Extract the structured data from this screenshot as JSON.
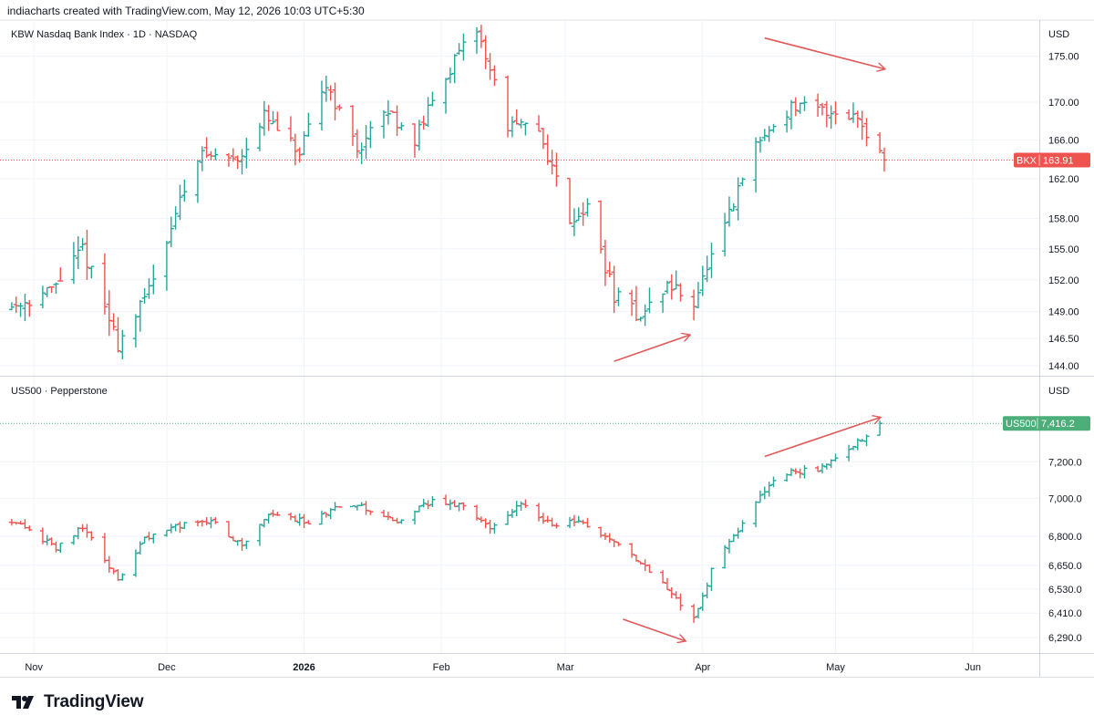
{
  "header": {
    "credit": "indiacharts created with TradingView.com, May 12, 2026 10:03 UTC+5:30"
  },
  "branding": {
    "logo_text": "TradingView"
  },
  "colors": {
    "up": "#26a69a",
    "down": "#ef5350",
    "arrow": "#e05a5a",
    "grid": "#f0f3fa",
    "axis_text": "#131722",
    "bkx_tag": "#ef5350",
    "us500_tag": "#4caf7a"
  },
  "chart_data": [
    {
      "type": "ohlc",
      "title": "KBW Nasdaq Bank Index · 1D · NASDAQ",
      "currency": "USD",
      "price_tag": {
        "symbol": "BKX",
        "value": "163.91"
      },
      "y_ticks": [
        "175.00",
        "170.00",
        "166.00",
        "162.00",
        "158.00",
        "155.00",
        "152.00",
        "149.00",
        "146.50",
        "144.00"
      ],
      "ylim": [
        143.5,
        178.5
      ],
      "log_scale": true,
      "annotations": [
        {
          "type": "arrow",
          "direction": "down",
          "from": [
            "2026-04-15",
            177.0
          ],
          "to": [
            "2026-05-12",
            173.6
          ]
        },
        {
          "type": "arrow",
          "direction": "up",
          "from": [
            "2026-03-12",
            144.4
          ],
          "to": [
            "2026-03-29",
            146.8
          ]
        }
      ],
      "anchors": [
        [
          "2025-10-27",
          149.5
        ],
        [
          "2025-11-05",
          151.0
        ],
        [
          "2025-11-12",
          155.0
        ],
        [
          "2025-11-20",
          146.0
        ],
        [
          "2025-11-26",
          150.0
        ],
        [
          "2025-12-03",
          158.5
        ],
        [
          "2025-12-08",
          164.5
        ],
        [
          "2025-12-17",
          164.0
        ],
        [
          "2025-12-23",
          168.5
        ],
        [
          "2025-12-31",
          164.5
        ],
        [
          "2026-01-06",
          172.0
        ],
        [
          "2026-01-13",
          165.0
        ],
        [
          "2026-01-20",
          169.0
        ],
        [
          "2026-01-26",
          166.0
        ],
        [
          "2026-02-02",
          173.0
        ],
        [
          "2026-02-09",
          178.0
        ],
        [
          "2026-02-16",
          167.5
        ],
        [
          "2026-02-23",
          167.0
        ],
        [
          "2026-03-02",
          158.0
        ],
        [
          "2026-03-06",
          159.0
        ],
        [
          "2026-03-12",
          150.5
        ],
        [
          "2026-03-18",
          148.5
        ],
        [
          "2026-03-24",
          151.5
        ],
        [
          "2026-03-30",
          150.0
        ],
        [
          "2026-04-06",
          157.0
        ],
        [
          "2026-04-13",
          165.5
        ],
        [
          "2026-04-21",
          169.5
        ],
        [
          "2026-04-30",
          169.0
        ],
        [
          "2026-05-06",
          168.5
        ],
        [
          "2026-05-12",
          163.91
        ]
      ]
    },
    {
      "type": "ohlc",
      "title": "US500 · Pepperstone",
      "currency": "USD",
      "price_tag": {
        "symbol": "US500",
        "value": "7,416.2"
      },
      "y_ticks": [
        "7,200.0",
        "7,000.0",
        "6,800.0",
        "6,650.0",
        "6,530.0",
        "6,410.0",
        "6,290.0"
      ],
      "ylim": [
        6260,
        7480
      ],
      "log_scale": true,
      "annotations": [
        {
          "type": "arrow",
          "direction": "up",
          "from": [
            "2026-04-15",
            7230
          ],
          "to": [
            "2026-05-11",
            7450
          ]
        },
        {
          "type": "arrow",
          "direction": "down",
          "from": [
            "2026-03-14",
            6380
          ],
          "to": [
            "2026-03-28",
            6275
          ]
        }
      ],
      "anchors": [
        [
          "2025-10-27",
          6880
        ],
        [
          "2025-11-06",
          6740
        ],
        [
          "2025-11-12",
          6850
        ],
        [
          "2025-11-20",
          6570
        ],
        [
          "2025-11-26",
          6780
        ],
        [
          "2025-12-03",
          6850
        ],
        [
          "2025-12-11",
          6880
        ],
        [
          "2025-12-18",
          6750
        ],
        [
          "2025-12-24",
          6920
        ],
        [
          "2026-01-02",
          6870
        ],
        [
          "2026-01-09",
          6960
        ],
        [
          "2026-01-15",
          6950
        ],
        [
          "2026-01-22",
          6870
        ],
        [
          "2026-01-30",
          6990
        ],
        [
          "2026-02-06",
          6960
        ],
        [
          "2026-02-12",
          6840
        ],
        [
          "2026-02-19",
          6980
        ],
        [
          "2026-02-26",
          6860
        ],
        [
          "2026-03-04",
          6890
        ],
        [
          "2026-03-10",
          6800
        ],
        [
          "2026-03-16",
          6700
        ],
        [
          "2026-03-23",
          6560
        ],
        [
          "2026-03-30",
          6380
        ],
        [
          "2026-04-03",
          6620
        ],
        [
          "2026-04-08",
          6800
        ],
        [
          "2026-04-14",
          7030
        ],
        [
          "2026-04-20",
          7140
        ],
        [
          "2026-04-27",
          7160
        ],
        [
          "2026-05-05",
          7290
        ],
        [
          "2026-05-11",
          7416.2
        ]
      ]
    }
  ],
  "x_axis": {
    "ticks": [
      {
        "label": "Nov",
        "date": "2025-11-01"
      },
      {
        "label": "Dec",
        "date": "2025-12-01"
      },
      {
        "label": "2026",
        "date": "2026-01-01"
      },
      {
        "label": "Feb",
        "date": "2026-02-01"
      },
      {
        "label": "Mar",
        "date": "2026-03-01"
      },
      {
        "label": "Apr",
        "date": "2026-04-01"
      },
      {
        "label": "May",
        "date": "2026-05-01"
      },
      {
        "label": "Jun",
        "date": "2026-06-01"
      }
    ],
    "xlim": [
      "2025-10-26",
      "2026-06-16"
    ]
  }
}
